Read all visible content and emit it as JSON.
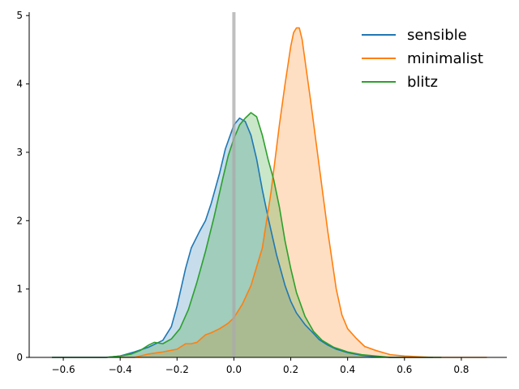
{
  "chart_data": {
    "type": "area",
    "title": "",
    "xlabel": "",
    "ylabel": "",
    "xlim": [
      -0.72,
      0.96
    ],
    "ylim": [
      0,
      5.05
    ],
    "x_ticks": [
      -0.6,
      -0.4,
      -0.2,
      0.0,
      0.2,
      0.4,
      0.6,
      0.8
    ],
    "x_tick_labels": [
      "−0.6",
      "−0.4",
      "−0.2",
      "0.0",
      "0.2",
      "0.4",
      "0.6",
      "0.8"
    ],
    "y_ticks": [
      0,
      1,
      2,
      3,
      4,
      5
    ],
    "y_tick_labels": [
      "0",
      "1",
      "2",
      "3",
      "4",
      "5"
    ],
    "grid": false,
    "legend_position": "top-right",
    "reference_line": {
      "x": 0.0,
      "color": "#aaaaaa"
    },
    "series": [
      {
        "name": "sensible",
        "color": "#1f77b4",
        "x": [
          -0.64,
          -0.5,
          -0.45,
          -0.4,
          -0.35,
          -0.3,
          -0.25,
          -0.22,
          -0.2,
          -0.17,
          -0.15,
          -0.12,
          -0.1,
          -0.08,
          -0.05,
          -0.03,
          0.0,
          0.02,
          0.04,
          0.06,
          0.08,
          0.1,
          0.12,
          0.15,
          0.18,
          0.2,
          0.22,
          0.25,
          0.28,
          0.3,
          0.33,
          0.36,
          0.4,
          0.45,
          0.5,
          0.55,
          0.6,
          0.65,
          0.7
        ],
        "y": [
          0.0,
          0.0,
          0.0,
          0.02,
          0.08,
          0.15,
          0.25,
          0.45,
          0.75,
          1.3,
          1.6,
          1.85,
          2.0,
          2.25,
          2.7,
          3.05,
          3.4,
          3.5,
          3.45,
          3.25,
          2.9,
          2.45,
          2.05,
          1.5,
          1.05,
          0.82,
          0.65,
          0.48,
          0.35,
          0.26,
          0.18,
          0.12,
          0.07,
          0.03,
          0.01,
          0.0,
          0.0,
          0.0,
          0.0
        ]
      },
      {
        "name": "minimalist",
        "color": "#ff7f0e",
        "x": [
          -0.4,
          -0.35,
          -0.3,
          -0.25,
          -0.2,
          -0.17,
          -0.15,
          -0.13,
          -0.1,
          -0.08,
          -0.05,
          -0.02,
          0.0,
          0.03,
          0.06,
          0.1,
          0.13,
          0.16,
          0.18,
          0.2,
          0.21,
          0.22,
          0.23,
          0.24,
          0.25,
          0.27,
          0.3,
          0.33,
          0.36,
          0.38,
          0.4,
          0.43,
          0.46,
          0.5,
          0.55,
          0.6,
          0.7,
          0.8,
          0.89
        ],
        "y": [
          0.0,
          0.0,
          0.05,
          0.08,
          0.12,
          0.2,
          0.2,
          0.22,
          0.33,
          0.36,
          0.42,
          0.5,
          0.58,
          0.78,
          1.05,
          1.6,
          2.4,
          3.4,
          4.0,
          4.55,
          4.75,
          4.82,
          4.82,
          4.65,
          4.35,
          3.75,
          2.8,
          1.85,
          1.0,
          0.62,
          0.42,
          0.28,
          0.16,
          0.1,
          0.04,
          0.02,
          0.0,
          0.0,
          0.0
        ]
      },
      {
        "name": "blitz",
        "color": "#2ca02c",
        "x": [
          -0.64,
          -0.5,
          -0.45,
          -0.4,
          -0.36,
          -0.33,
          -0.3,
          -0.28,
          -0.25,
          -0.22,
          -0.19,
          -0.16,
          -0.13,
          -0.1,
          -0.07,
          -0.04,
          -0.02,
          0.0,
          0.02,
          0.04,
          0.06,
          0.08,
          0.1,
          0.12,
          0.14,
          0.16,
          0.18,
          0.2,
          0.22,
          0.25,
          0.28,
          0.31,
          0.35,
          0.4,
          0.45,
          0.5,
          0.55,
          0.6,
          0.73
        ],
        "y": [
          0.0,
          0.0,
          0.0,
          0.02,
          0.05,
          0.1,
          0.18,
          0.22,
          0.2,
          0.27,
          0.42,
          0.7,
          1.1,
          1.55,
          2.05,
          2.6,
          2.95,
          3.2,
          3.4,
          3.5,
          3.58,
          3.52,
          3.25,
          2.9,
          2.6,
          2.2,
          1.7,
          1.3,
          0.95,
          0.6,
          0.38,
          0.25,
          0.15,
          0.08,
          0.04,
          0.02,
          0.0,
          0.0,
          0.0
        ]
      }
    ]
  }
}
